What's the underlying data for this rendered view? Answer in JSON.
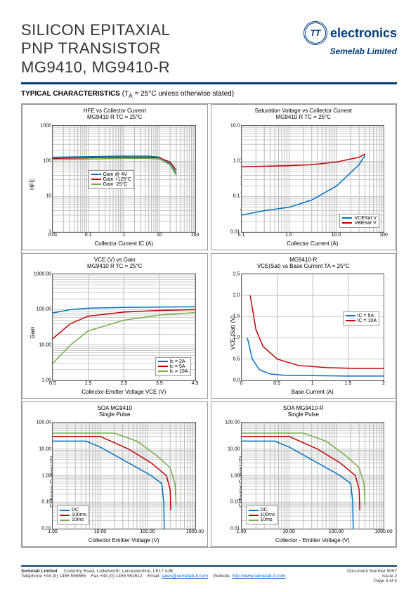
{
  "header": {
    "title_l1": "SILICON EPITAXIAL",
    "title_l2": "PNP TRANSISTOR",
    "title_l3": "MG9410, MG9410-R",
    "logo_tt": "TT",
    "logo_text": "electronics",
    "logo_sub": "Semelab Limited"
  },
  "section_header": {
    "bold": "TYPICAL CHARACTERISTICS",
    "note": " (T",
    "sub": "A",
    "note2": " = 25°C unless otherwise stated)"
  },
  "charts": [
    {
      "title_l1": "HFE vs Collector Current",
      "title_l2": "MG9410 R TC = 25°C",
      "ylabel": "HFE",
      "xlabel": "Collector Current IC (A)",
      "xscale": "log",
      "yscale": "log",
      "xlim": [
        0.01,
        100
      ],
      "ylim": [
        1,
        1000
      ],
      "xticks": [
        "0.01",
        "0.1",
        "1",
        "10",
        "100"
      ],
      "yticks": [
        "1",
        "10",
        "100",
        "1000"
      ],
      "legend_pos": "center",
      "series": [
        {
          "label": "Gain @ 4V",
          "color": "#0070c0",
          "pts": [
            [
              0.01,
              130
            ],
            [
              0.1,
              135
            ],
            [
              1,
              140
            ],
            [
              5,
              140
            ],
            [
              10,
              130
            ],
            [
              20,
              85
            ],
            [
              30,
              45
            ]
          ]
        },
        {
          "label": "Gain +125°C",
          "color": "#c00000",
          "pts": [
            [
              0.01,
              120
            ],
            [
              0.1,
              125
            ],
            [
              1,
              130
            ],
            [
              5,
              130
            ],
            [
              10,
              125
            ],
            [
              20,
              95
            ],
            [
              30,
              55
            ]
          ]
        },
        {
          "label": "Gain -25°C",
          "color": "#70ad47",
          "pts": [
            [
              0.01,
              110
            ],
            [
              0.1,
              115
            ],
            [
              1,
              120
            ],
            [
              5,
              120
            ],
            [
              10,
              115
            ],
            [
              20,
              80
            ],
            [
              30,
              40
            ]
          ]
        }
      ]
    },
    {
      "title_l1": "Saturation Voltage vs Collector Current",
      "title_l2": "MG9410 R TC = 25°C",
      "ylabel": "Saturation Voltage (V)",
      "xlabel": "Collector Current (A)",
      "xscale": "log",
      "yscale": "log",
      "xlim": [
        0.1,
        100
      ],
      "ylim": [
        0.01,
        10
      ],
      "xticks": [
        "0.1",
        "1.0",
        "10.0",
        "100"
      ],
      "yticks": [
        "0.01",
        "0.1",
        "1.0",
        "10.0"
      ],
      "legend_pos": "bottomright",
      "series": [
        {
          "label": "VCESat V",
          "color": "#0070c0",
          "pts": [
            [
              0.1,
              0.03
            ],
            [
              0.3,
              0.04
            ],
            [
              1,
              0.05
            ],
            [
              3,
              0.08
            ],
            [
              10,
              0.2
            ],
            [
              30,
              0.8
            ],
            [
              40,
              1.5
            ]
          ]
        },
        {
          "label": "VBESat V",
          "color": "#c00000",
          "pts": [
            [
              0.1,
              0.7
            ],
            [
              0.3,
              0.72
            ],
            [
              1,
              0.75
            ],
            [
              3,
              0.8
            ],
            [
              10,
              0.95
            ],
            [
              30,
              1.3
            ],
            [
              40,
              1.6
            ]
          ]
        }
      ]
    },
    {
      "title_l1": "VCE (V) vs Gain",
      "title_l2": "MG9410 R TC = 25°C",
      "ylabel": "Gain",
      "xlabel": "Collector-Emitter Voltage VCE (V)",
      "xscale": "linear",
      "yscale": "log",
      "xlim": [
        0.5,
        4.5
      ],
      "ylim": [
        1,
        1000
      ],
      "xticks": [
        "0.5",
        "1.5",
        "2.5",
        "3.5",
        "4.5"
      ],
      "yticks": [
        "1.00",
        "10.00",
        "100.00",
        "1000.00"
      ],
      "legend_pos": "bottomright",
      "series": [
        {
          "label": "Ic = 2A",
          "color": "#0070c0",
          "pts": [
            [
              0.5,
              80
            ],
            [
              1,
              100
            ],
            [
              1.5,
              110
            ],
            [
              2.5,
              115
            ],
            [
              3.5,
              118
            ],
            [
              4.5,
              120
            ]
          ]
        },
        {
          "label": "Ic = 5A",
          "color": "#c00000",
          "pts": [
            [
              0.5,
              15
            ],
            [
              1,
              40
            ],
            [
              1.5,
              65
            ],
            [
              2.5,
              85
            ],
            [
              3.5,
              95
            ],
            [
              4.5,
              100
            ]
          ]
        },
        {
          "label": "Ic = 10A",
          "color": "#70ad47",
          "pts": [
            [
              0.5,
              3
            ],
            [
              1,
              10
            ],
            [
              1.5,
              25
            ],
            [
              2.5,
              50
            ],
            [
              3.5,
              70
            ],
            [
              4.5,
              82
            ]
          ]
        }
      ]
    },
    {
      "title_l1": "MG9410-R",
      "title_l2": "VCE(Sat) vs Base Current TA = 25°C",
      "ylabel": "VCE (Sat) (V)",
      "xlabel": "Base Current (A)",
      "xscale": "linear",
      "yscale": "linear",
      "xlim": [
        0,
        2
      ],
      "ylim": [
        0,
        2.5
      ],
      "xticks": [
        "0",
        "0.5",
        "1",
        "1.5",
        "2"
      ],
      "yticks": [
        "0.0",
        "0.5",
        "1.0",
        "1.5",
        "2.0",
        "2.5"
      ],
      "legend_pos": "right",
      "series": [
        {
          "label": "IC = 5A",
          "color": "#0070c0",
          "pts": [
            [
              0.08,
              1.0
            ],
            [
              0.15,
              0.5
            ],
            [
              0.25,
              0.25
            ],
            [
              0.4,
              0.15
            ],
            [
              0.6,
              0.12
            ],
            [
              1,
              0.11
            ],
            [
              1.5,
              0.1
            ],
            [
              2,
              0.1
            ]
          ]
        },
        {
          "label": "IC = 10A",
          "color": "#c00000",
          "pts": [
            [
              0.12,
              2.0
            ],
            [
              0.2,
              1.2
            ],
            [
              0.3,
              0.8
            ],
            [
              0.5,
              0.5
            ],
            [
              0.8,
              0.35
            ],
            [
              1.2,
              0.3
            ],
            [
              1.6,
              0.28
            ],
            [
              2,
              0.28
            ]
          ]
        }
      ]
    },
    {
      "title_l1": "SOA MG9410",
      "title_l2": "Single Pulse",
      "ylabel": "Collector Current (A)",
      "xlabel": "Collector Emitter Voltage (V)",
      "xscale": "log",
      "yscale": "log",
      "xlim": [
        1,
        1000
      ],
      "ylim": [
        0.01,
        100
      ],
      "xticks": [
        "1.00",
        "10.00",
        "100.00",
        "1000.00"
      ],
      "yticks": [
        "0.01",
        "0.10",
        "1.00",
        "10.00",
        "100.00"
      ],
      "legend_pos": "bottomleft",
      "series": [
        {
          "label": "DC",
          "color": "#0070c0",
          "pts": [
            [
              1,
              20
            ],
            [
              5,
              20
            ],
            [
              10,
              12
            ],
            [
              40,
              3
            ],
            [
              120,
              1
            ],
            [
              200,
              0.5
            ],
            [
              220,
              0.1
            ],
            [
              225,
              0.01
            ]
          ]
        },
        {
          "label": "100ms",
          "color": "#c00000",
          "pts": [
            [
              1,
              30
            ],
            [
              10,
              30
            ],
            [
              40,
              10
            ],
            [
              120,
              3
            ],
            [
              250,
              1
            ],
            [
              300,
              0.3
            ],
            [
              310,
              0.05
            ]
          ]
        },
        {
          "label": "10ms",
          "color": "#70ad47",
          "pts": [
            [
              1,
              40
            ],
            [
              20,
              40
            ],
            [
              60,
              20
            ],
            [
              150,
              6
            ],
            [
              300,
              2
            ],
            [
              380,
              0.5
            ],
            [
              400,
              0.08
            ]
          ]
        }
      ]
    },
    {
      "title_l1": "SOA MG9410-R",
      "title_l2": "Single Pulse",
      "ylabel": "Collector Current (A)",
      "xlabel": "Collector - Emitter Voltage (V)",
      "xscale": "log",
      "yscale": "log",
      "xlim": [
        1,
        1000
      ],
      "ylim": [
        0.01,
        100
      ],
      "xticks": [
        "1.00",
        "10.00",
        "100.00",
        "1000.00"
      ],
      "yticks": [
        "0.01",
        "0.10",
        "1.00",
        "10.00",
        "100.00"
      ],
      "legend_pos": "bottomleft",
      "series": [
        {
          "label": "DC",
          "color": "#0070c0",
          "pts": [
            [
              1,
              20
            ],
            [
              5,
              20
            ],
            [
              10,
              12
            ],
            [
              40,
              3
            ],
            [
              120,
              1
            ],
            [
              200,
              0.5
            ],
            [
              220,
              0.1
            ],
            [
              225,
              0.01
            ]
          ]
        },
        {
          "label": "100ms",
          "color": "#c00000",
          "pts": [
            [
              1,
              30
            ],
            [
              10,
              30
            ],
            [
              40,
              10
            ],
            [
              120,
              3
            ],
            [
              250,
              1
            ],
            [
              300,
              0.3
            ],
            [
              310,
              0.05
            ]
          ]
        },
        {
          "label": "10ms",
          "color": "#70ad47",
          "pts": [
            [
              1,
              40
            ],
            [
              20,
              40
            ],
            [
              60,
              20
            ],
            [
              150,
              6
            ],
            [
              300,
              2
            ],
            [
              380,
              0.5
            ],
            [
              400,
              0.08
            ]
          ]
        }
      ]
    }
  ],
  "footer": {
    "company": "Semelab Limited",
    "address": "Coventry Road, Lutterworth, Leicestershire, LE17 4JB",
    "tel_label": "Telephone +44 (0) 1455 556565",
    "fax_label": "Fax +44 (0) 1455 552612",
    "email_label": "Email:",
    "email": "sales@semelab-tt.com",
    "web_label": "Website:",
    "web": "http://www.semelab-tt.com",
    "docnum": "Document Number 9097",
    "issue": "Issue 2",
    "page": "Page 3 of 5"
  }
}
